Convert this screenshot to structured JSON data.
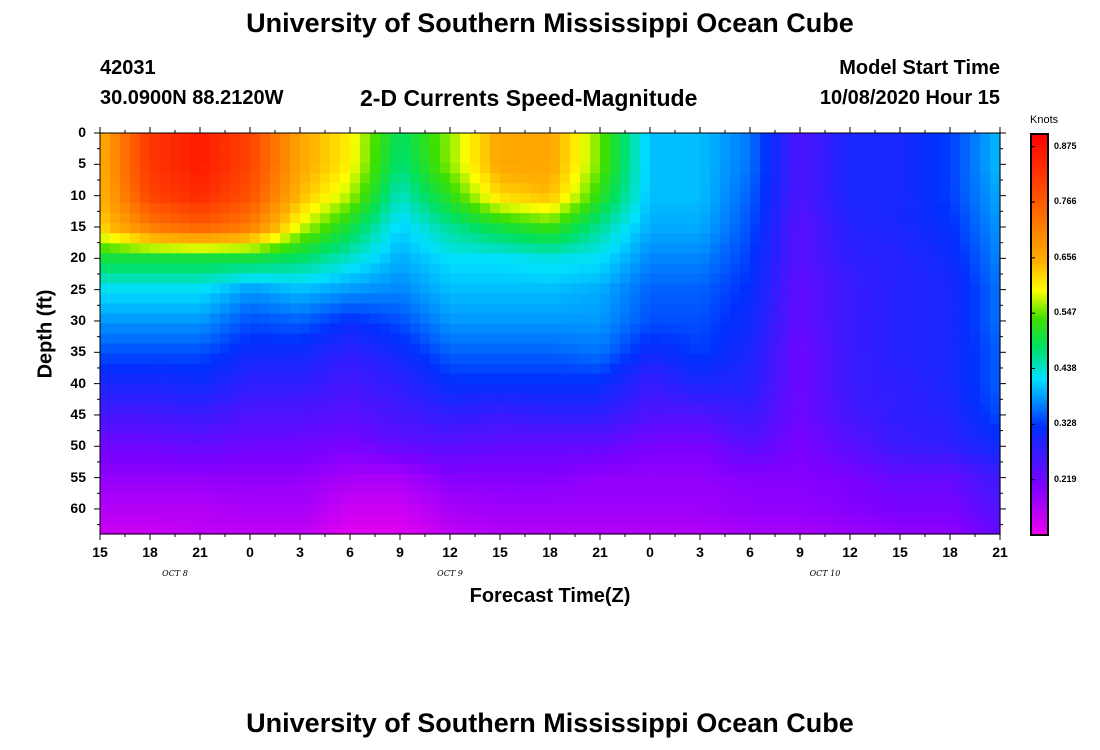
{
  "header": {
    "title_top": "University of Southern Mississippi Ocean Cube",
    "station_id": "42031",
    "station_coords": "30.0900N 88.2120W",
    "plot_title": "2-D Currents Speed-Magnitude",
    "model_start_label": "Model Start Time",
    "model_start_value": "10/08/2020 Hour 15",
    "title_bottom": "University of Southern Mississippi Ocean Cube"
  },
  "chart_data": {
    "type": "heatmap",
    "title": "2-D Currents Speed-Magnitude",
    "xlabel": "Forecast Time(Z)",
    "ylabel": "Depth (ft)",
    "xlim_hours": [
      0,
      54
    ],
    "ylim_ft": [
      0,
      64
    ],
    "x_tick_labels": [
      "15",
      "18",
      "21",
      "0",
      "3",
      "6",
      "9",
      "12",
      "15",
      "18",
      "21",
      "0",
      "3",
      "6",
      "9",
      "12",
      "15",
      "18",
      "21"
    ],
    "y_tick_labels": [
      "0",
      "5",
      "10",
      "15",
      "20",
      "25",
      "30",
      "35",
      "40",
      "45",
      "50",
      "55",
      "60"
    ],
    "date_labels": [
      {
        "text": "OCT 8",
        "hour": 4.5
      },
      {
        "text": "OCT 9",
        "hour": 21
      },
      {
        "text": "OCT 10",
        "hour": 43.5
      }
    ],
    "colorbar": {
      "unit": "Knots",
      "min": 0.11,
      "max": 0.9,
      "labels": [
        "0.875",
        "0.766",
        "0.656",
        "0.547",
        "0.438",
        "0.328",
        "0.219"
      ]
    },
    "grid": {
      "hours": [
        0,
        3,
        6,
        9,
        12,
        15,
        18,
        21,
        24,
        27,
        30,
        33,
        36,
        39,
        42,
        45,
        48,
        51,
        54
      ],
      "depths": [
        0,
        5,
        10,
        15,
        20,
        25,
        30,
        35,
        40,
        45,
        50,
        55,
        60,
        64
      ],
      "speeds": [
        [
          0.65,
          0.82,
          0.86,
          0.8,
          0.66,
          0.6,
          0.48,
          0.56,
          0.66,
          0.66,
          0.55,
          0.4,
          0.4,
          0.36,
          0.25,
          0.3,
          0.3,
          0.33,
          0.4
        ],
        [
          0.65,
          0.82,
          0.86,
          0.8,
          0.66,
          0.6,
          0.47,
          0.56,
          0.66,
          0.66,
          0.55,
          0.4,
          0.4,
          0.36,
          0.25,
          0.3,
          0.3,
          0.33,
          0.4
        ],
        [
          0.64,
          0.8,
          0.84,
          0.78,
          0.64,
          0.57,
          0.44,
          0.52,
          0.62,
          0.64,
          0.52,
          0.4,
          0.4,
          0.35,
          0.25,
          0.3,
          0.3,
          0.33,
          0.39
        ],
        [
          0.62,
          0.72,
          0.76,
          0.72,
          0.58,
          0.5,
          0.41,
          0.46,
          0.5,
          0.53,
          0.46,
          0.39,
          0.39,
          0.34,
          0.24,
          0.29,
          0.3,
          0.32,
          0.38
        ],
        [
          0.5,
          0.5,
          0.5,
          0.5,
          0.48,
          0.44,
          0.39,
          0.42,
          0.42,
          0.43,
          0.42,
          0.37,
          0.37,
          0.33,
          0.24,
          0.28,
          0.29,
          0.31,
          0.37
        ],
        [
          0.42,
          0.42,
          0.42,
          0.38,
          0.4,
          0.38,
          0.37,
          0.4,
          0.4,
          0.4,
          0.39,
          0.35,
          0.35,
          0.32,
          0.23,
          0.27,
          0.29,
          0.3,
          0.36
        ],
        [
          0.38,
          0.38,
          0.38,
          0.34,
          0.35,
          0.32,
          0.34,
          0.38,
          0.38,
          0.38,
          0.38,
          0.34,
          0.34,
          0.31,
          0.23,
          0.27,
          0.29,
          0.3,
          0.36
        ],
        [
          0.34,
          0.34,
          0.34,
          0.31,
          0.31,
          0.28,
          0.31,
          0.35,
          0.35,
          0.35,
          0.36,
          0.31,
          0.33,
          0.3,
          0.22,
          0.27,
          0.29,
          0.3,
          0.35
        ],
        [
          0.3,
          0.3,
          0.31,
          0.28,
          0.28,
          0.26,
          0.28,
          0.32,
          0.32,
          0.32,
          0.32,
          0.27,
          0.3,
          0.29,
          0.22,
          0.27,
          0.28,
          0.3,
          0.35
        ],
        [
          0.26,
          0.26,
          0.27,
          0.25,
          0.25,
          0.24,
          0.26,
          0.28,
          0.27,
          0.28,
          0.28,
          0.25,
          0.25,
          0.27,
          0.22,
          0.26,
          0.28,
          0.29,
          0.34
        ],
        [
          0.22,
          0.22,
          0.23,
          0.22,
          0.22,
          0.21,
          0.23,
          0.24,
          0.23,
          0.23,
          0.23,
          0.21,
          0.21,
          0.24,
          0.21,
          0.24,
          0.27,
          0.28,
          0.31
        ],
        [
          0.19,
          0.19,
          0.19,
          0.19,
          0.19,
          0.17,
          0.17,
          0.2,
          0.2,
          0.2,
          0.19,
          0.19,
          0.19,
          0.2,
          0.2,
          0.21,
          0.23,
          0.23,
          0.27
        ],
        [
          0.16,
          0.16,
          0.16,
          0.17,
          0.17,
          0.14,
          0.14,
          0.17,
          0.18,
          0.18,
          0.18,
          0.18,
          0.18,
          0.19,
          0.19,
          0.2,
          0.21,
          0.21,
          0.25
        ],
        [
          0.14,
          0.14,
          0.15,
          0.15,
          0.15,
          0.12,
          0.12,
          0.15,
          0.16,
          0.16,
          0.16,
          0.16,
          0.16,
          0.17,
          0.17,
          0.18,
          0.19,
          0.19,
          0.23
        ]
      ]
    }
  }
}
